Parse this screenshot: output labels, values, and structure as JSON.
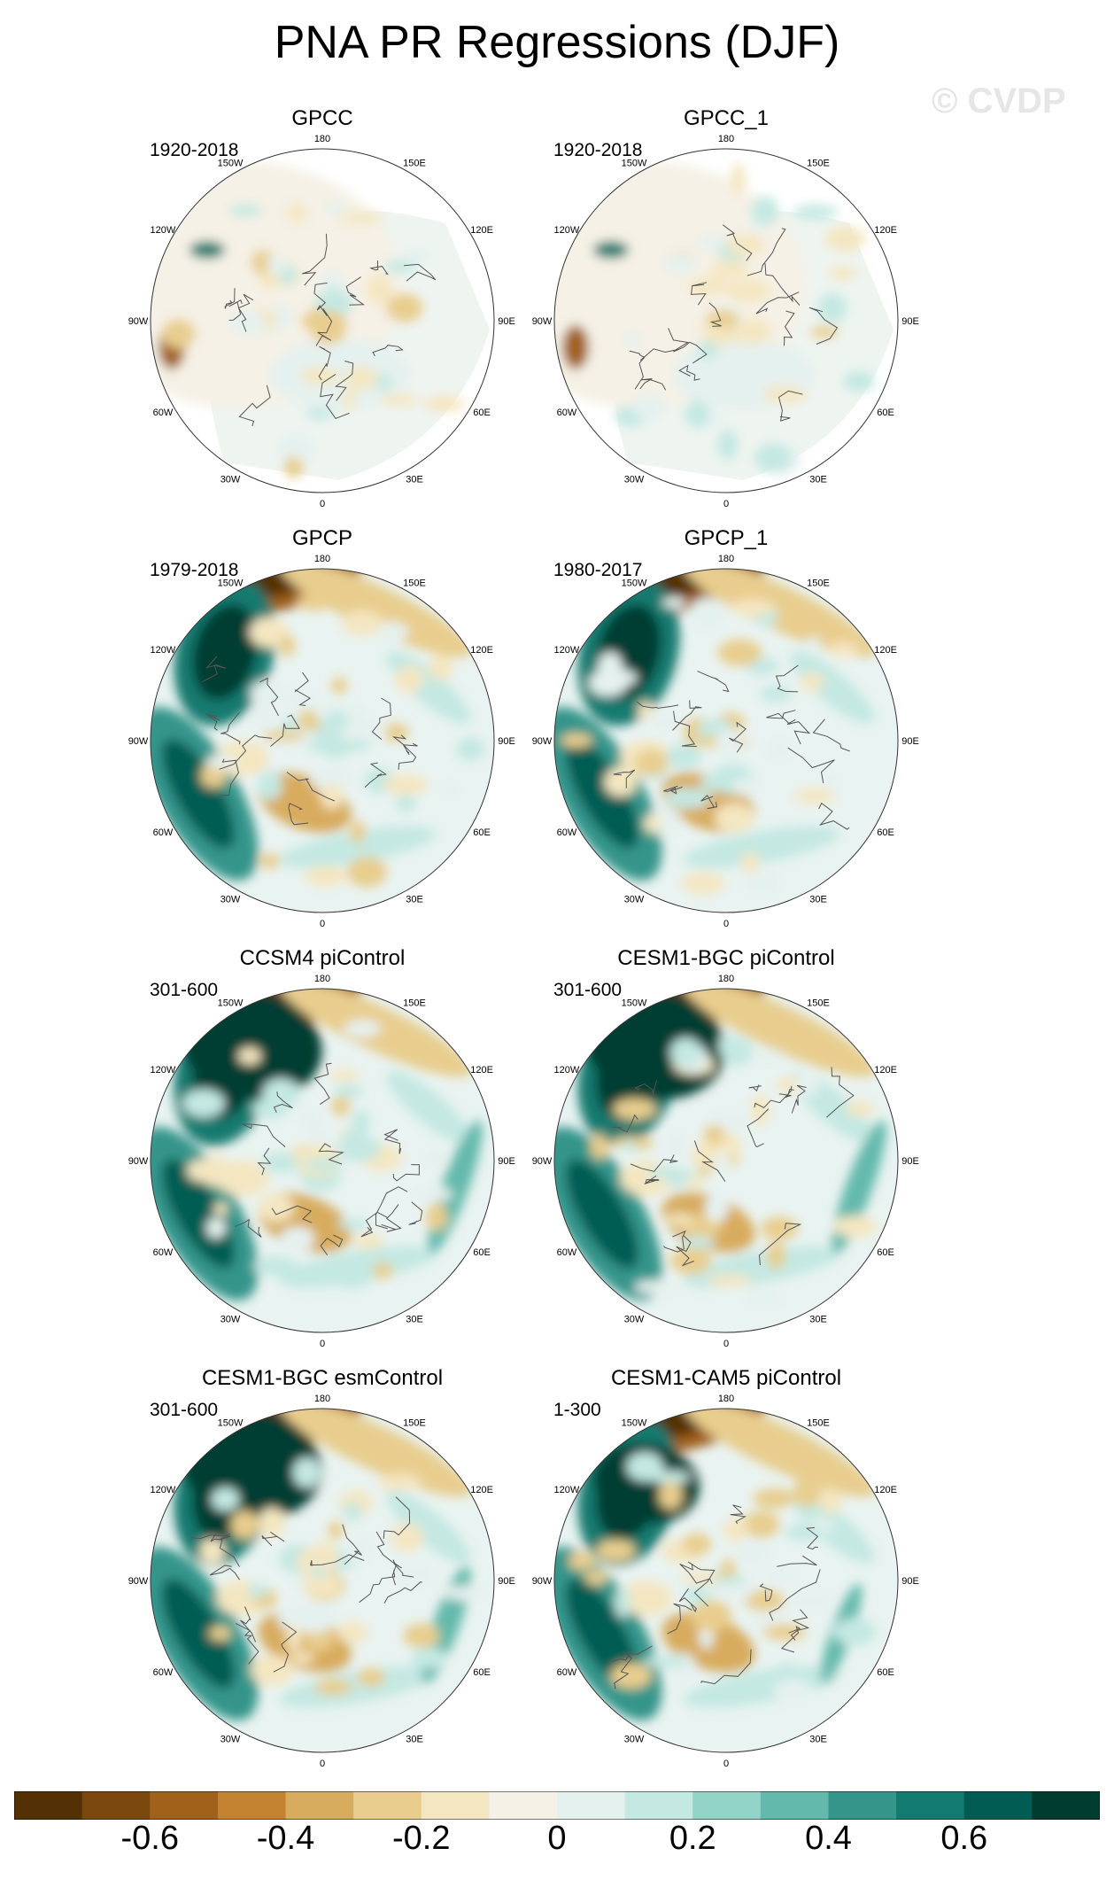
{
  "title": "PNA PR Regressions (DJF)",
  "watermark": "© CVDP",
  "lon_labels": [
    "180",
    "150E",
    "120E",
    "90E",
    "60E",
    "30E",
    "0",
    "30W",
    "60W",
    "90W",
    "120W",
    "150W"
  ],
  "panels": [
    {
      "title": "GPCC",
      "period": "1920-2018"
    },
    {
      "title": "GPCC_1",
      "period": "1920-2018"
    },
    {
      "title": "GPCP",
      "period": "1979-2018"
    },
    {
      "title": "GPCP_1",
      "period": "1980-2017"
    },
    {
      "title": "CCSM4 piControl",
      "period": "301-600"
    },
    {
      "title": "CESM1-BGC piControl",
      "period": "301-600"
    },
    {
      "title": "CESM1-BGC esmControl",
      "period": "301-600"
    },
    {
      "title": "CESM1-CAM5 piControl",
      "period": "1-300"
    }
  ],
  "colorbar": {
    "colors": [
      "#543005",
      "#7a470d",
      "#a0611b",
      "#c3822f",
      "#d8ac5f",
      "#e8cd8e",
      "#f4e6c1",
      "#f5f1e6",
      "#e5f1ef",
      "#c4e8e2",
      "#93d4c8",
      "#63b9ac",
      "#35958b",
      "#127a6f",
      "#015d53",
      "#003c30"
    ],
    "tick_values": [
      "-0.6",
      "-0.4",
      "-0.2",
      "0",
      "0.2",
      "0.4",
      "0.6"
    ]
  }
}
